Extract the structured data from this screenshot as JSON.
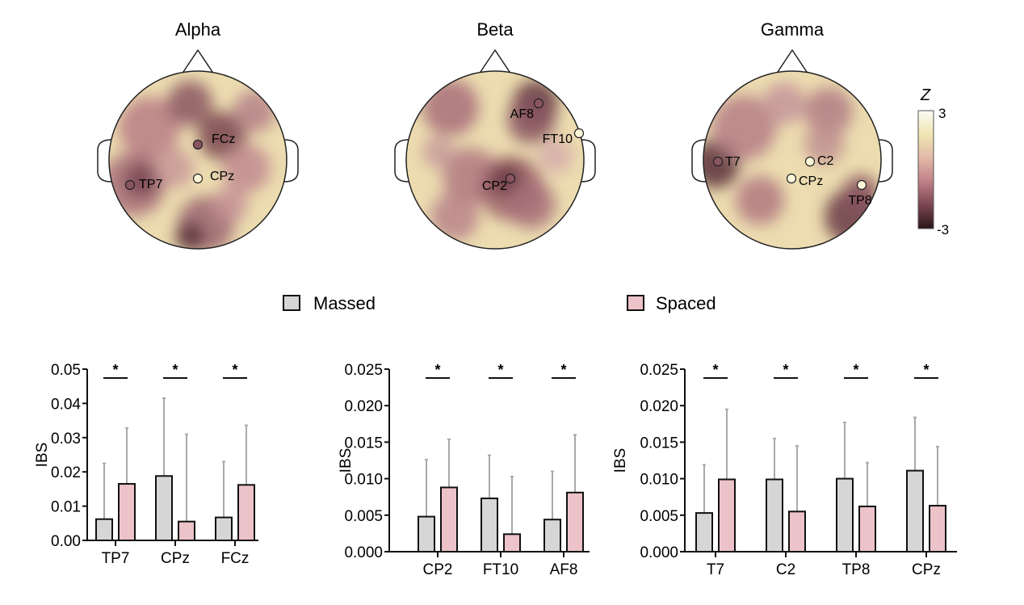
{
  "topomaps": [
    {
      "title": "Alpha",
      "electrodes": [
        {
          "label": "FCz",
          "fill": "dark"
        },
        {
          "label": "CPz",
          "fill": "light"
        },
        {
          "label": "TP7",
          "fill": "dark"
        }
      ]
    },
    {
      "title": "Beta",
      "electrodes": [
        {
          "label": "AF8",
          "fill": "dark"
        },
        {
          "label": "FT10",
          "fill": "light"
        },
        {
          "label": "CP2",
          "fill": "dark"
        }
      ]
    },
    {
      "title": "Gamma",
      "electrodes": [
        {
          "label": "T7",
          "fill": "dark"
        },
        {
          "label": "C2",
          "fill": "light"
        },
        {
          "label": "CPz",
          "fill": "light"
        },
        {
          "label": "TP8",
          "fill": "light"
        }
      ]
    }
  ],
  "colorbar": {
    "label": "Z",
    "max_label": "3",
    "min_label": "-3",
    "max": 3,
    "min": -3,
    "colors": [
      "#2a1518",
      "#7a4650",
      "#c08088",
      "#e2b9a8",
      "#efe6b2",
      "#fbfbf4"
    ]
  },
  "legend": [
    {
      "label": "Massed",
      "color": "#d6d6d6"
    },
    {
      "label": "Spaced",
      "color": "#ecc3c9"
    }
  ],
  "colors": {
    "massed": "#d6d6d6",
    "spaced": "#ecc3c9",
    "error": "#a9a9a9",
    "axis": "#111111"
  },
  "chart_data": [
    {
      "type": "bar",
      "title": "Alpha",
      "ylabel": "IBS",
      "xlabel": "",
      "ylim": [
        0,
        0.05
      ],
      "yticks": [
        "0.00",
        "0.01",
        "0.02",
        "0.03",
        "0.04",
        "0.05"
      ],
      "ytick_values": [
        0,
        0.01,
        0.02,
        0.03,
        0.04,
        0.05
      ],
      "categories": [
        "TP7",
        "CPz",
        "FCz"
      ],
      "series": [
        {
          "name": "Massed",
          "values": [
            0.0062,
            0.0188,
            0.0067
          ],
          "error_upper": [
            0.0225,
            0.0415,
            0.023
          ]
        },
        {
          "name": "Spaced",
          "values": [
            0.0165,
            0.0055,
            0.0162
          ],
          "error_upper": [
            0.0328,
            0.031,
            0.0336
          ]
        }
      ],
      "significance": [
        "*",
        "*",
        "*"
      ],
      "grid": false
    },
    {
      "type": "bar",
      "title": "Beta",
      "ylabel": "IBS",
      "xlabel": "",
      "ylim": [
        0,
        0.025
      ],
      "yticks": [
        "0.000",
        "0.005",
        "0.010",
        "0.015",
        "0.020",
        "0.025"
      ],
      "ytick_values": [
        0,
        0.005,
        0.01,
        0.015,
        0.02,
        0.025
      ],
      "categories": [
        "CP2",
        "FT10",
        "AF8"
      ],
      "series": [
        {
          "name": "Massed",
          "values": [
            0.0048,
            0.0073,
            0.0044
          ],
          "error_upper": [
            0.0126,
            0.0132,
            0.011
          ]
        },
        {
          "name": "Spaced",
          "values": [
            0.0088,
            0.0024,
            0.0081
          ],
          "error_upper": [
            0.0154,
            0.0103,
            0.016
          ]
        }
      ],
      "significance": [
        "*",
        "*",
        "*"
      ],
      "grid": false
    },
    {
      "type": "bar",
      "title": "Gamma",
      "ylabel": "IBS",
      "xlabel": "",
      "ylim": [
        0,
        0.025
      ],
      "yticks": [
        "0.000",
        "0.005",
        "0.010",
        "0.015",
        "0.020",
        "0.025"
      ],
      "ytick_values": [
        0,
        0.005,
        0.01,
        0.015,
        0.02,
        0.025
      ],
      "categories": [
        "T7",
        "C2",
        "TP8",
        "CPz"
      ],
      "series": [
        {
          "name": "Massed",
          "values": [
            0.0053,
            0.0099,
            0.01,
            0.0111
          ],
          "error_upper": [
            0.0119,
            0.0155,
            0.0177,
            0.0184
          ]
        },
        {
          "name": "Spaced",
          "values": [
            0.0099,
            0.0055,
            0.0062,
            0.0063
          ],
          "error_upper": [
            0.0195,
            0.0145,
            0.0122,
            0.0144
          ]
        }
      ],
      "significance": [
        "*",
        "*",
        "*",
        "*"
      ],
      "grid": false
    }
  ]
}
